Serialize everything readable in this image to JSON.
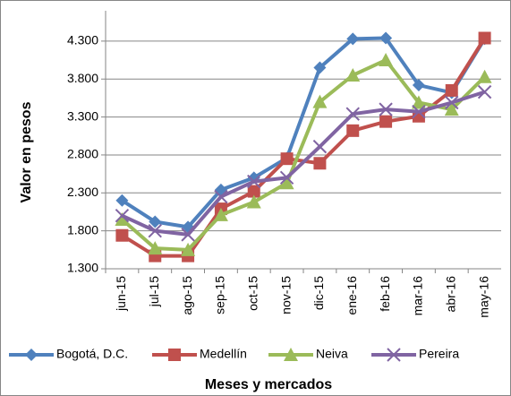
{
  "chart_data": {
    "type": "line",
    "x_label": "Meses y mercados",
    "y_label": "Valor en pesos",
    "categories": [
      "jun-15",
      "jul-15",
      "ago-15",
      "sep-15",
      "oct-15",
      "nov-15",
      "dic-15",
      "ene-16",
      "feb-16",
      "mar-16",
      "abr-16",
      "may-16"
    ],
    "series": [
      {
        "name": "Bogotá, D.C.",
        "color": "#4f81bd",
        "marker": "diamond",
        "values": [
          2200,
          1920,
          1850,
          2340,
          2500,
          2760,
          3950,
          4330,
          4340,
          3720,
          3620,
          4330
        ]
      },
      {
        "name": "Medellín",
        "color": "#c0504d",
        "marker": "square",
        "values": [
          1740,
          1470,
          1470,
          2090,
          2320,
          2750,
          2690,
          3120,
          3240,
          3310,
          3650,
          4340
        ]
      },
      {
        "name": "Neiva",
        "color": "#9bbb59",
        "marker": "triangle",
        "values": [
          1950,
          1570,
          1550,
          2010,
          2180,
          2430,
          3500,
          3850,
          4050,
          3490,
          3400,
          3830
        ]
      },
      {
        "name": "Pereira",
        "color": "#8064a2",
        "marker": "x",
        "values": [
          2000,
          1800,
          1750,
          2250,
          2450,
          2500,
          2910,
          3340,
          3400,
          3370,
          3490,
          3630
        ]
      }
    ],
    "ylim": [
      1300,
      4700
    ],
    "yticks": [
      {
        "value": 1300,
        "label": "1.300"
      },
      {
        "value": 1800,
        "label": "1.800"
      },
      {
        "value": 2300,
        "label": "2.300"
      },
      {
        "value": 2800,
        "label": "2.800"
      },
      {
        "value": 3300,
        "label": "3.300"
      },
      {
        "value": 3800,
        "label": "3.800"
      },
      {
        "value": 4300,
        "label": "4.300"
      }
    ],
    "grid": true,
    "legend": "bottom"
  }
}
